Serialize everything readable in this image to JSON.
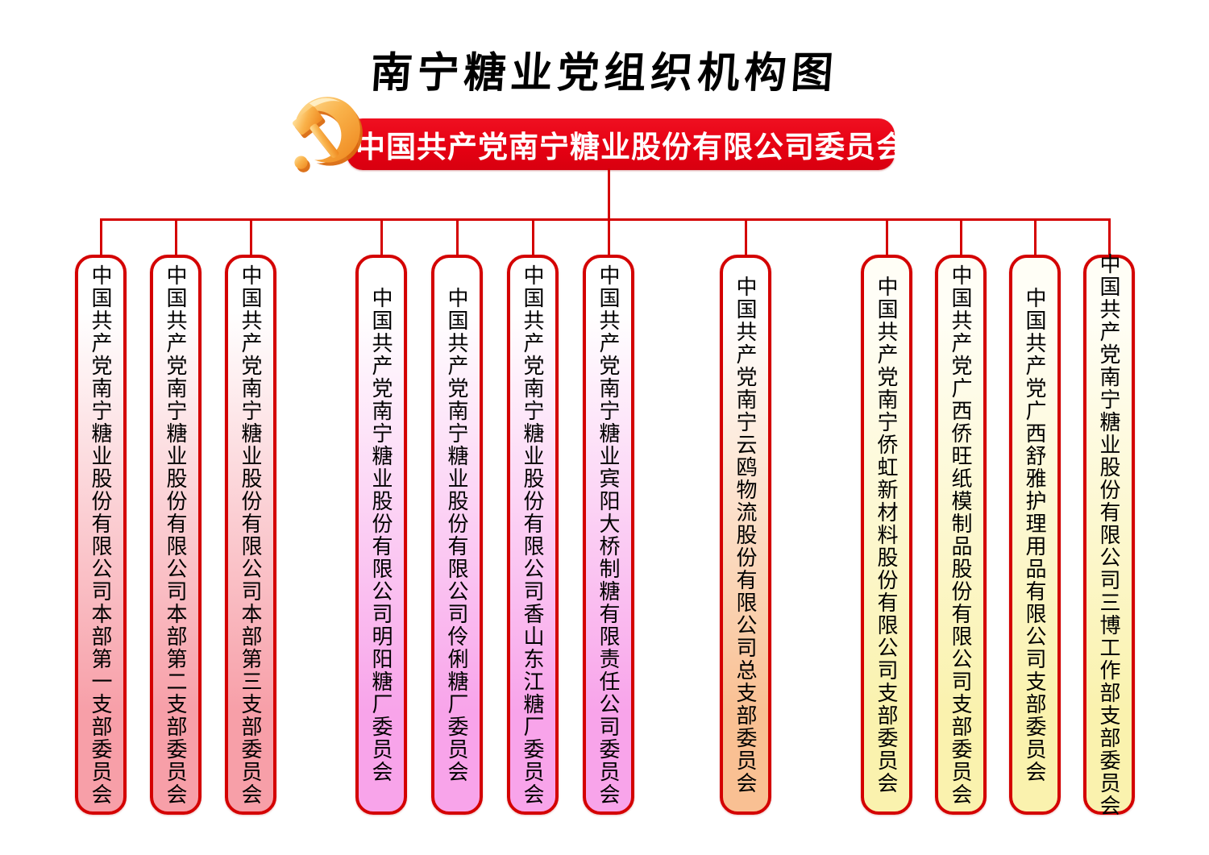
{
  "title": "南宁糖业党组织机构图",
  "root": {
    "label": "中国共产党南宁糖业股份有限公司委员会",
    "emblem_icon": "party-emblem-icon",
    "banner_color": "#e60012",
    "text_color": "#ffffff"
  },
  "connector_color": "#d40000",
  "group_colors": {
    "pink": {
      "top": "#ffffff",
      "bottom": "#f79fa8"
    },
    "magenta": {
      "top": "#ffffff",
      "bottom": "#f8a4ea"
    },
    "peach": {
      "top": "#ffffff",
      "bottom": "#f9c093"
    },
    "yellow": {
      "top": "#fffef6",
      "bottom": "#faf2ae"
    }
  },
  "branches": [
    {
      "label": "中国共产党南宁糖业股份有限公司本部第一支部委员会",
      "group": "pink"
    },
    {
      "label": "中国共产党南宁糖业股份有限公司本部第二支部委员会",
      "group": "pink"
    },
    {
      "label": "中国共产党南宁糖业股份有限公司本部第三支部委员会",
      "group": "pink"
    },
    {
      "label": "中国共产党南宁糖业股份有限公司明阳糖厂委员会",
      "group": "magenta"
    },
    {
      "label": "中国共产党南宁糖业股份有限公司伶俐糖厂委员会",
      "group": "magenta"
    },
    {
      "label": "中国共产党南宁糖业股份有限公司香山东江糖厂委员会",
      "group": "magenta"
    },
    {
      "label": "中国共产党南宁糖业宾阳大桥制糖有限责任公司委员会",
      "group": "magenta"
    },
    {
      "label": "中国共产党南宁云鸥物流股份有限公司总支部委员会",
      "group": "peach"
    },
    {
      "label": "中国共产党南宁侨虹新材料股份有限公司支部委员会",
      "group": "yellow"
    },
    {
      "label": "中国共产党广西侨旺纸模制品股份有限公司支部委员会",
      "group": "yellow"
    },
    {
      "label": "中国共产党广西舒雅护理用品有限公司支部委员会",
      "group": "yellow"
    },
    {
      "label": "中国共产党南宁糖业股份有限公司三博工作部支部委员会",
      "group": "yellow"
    }
  ]
}
